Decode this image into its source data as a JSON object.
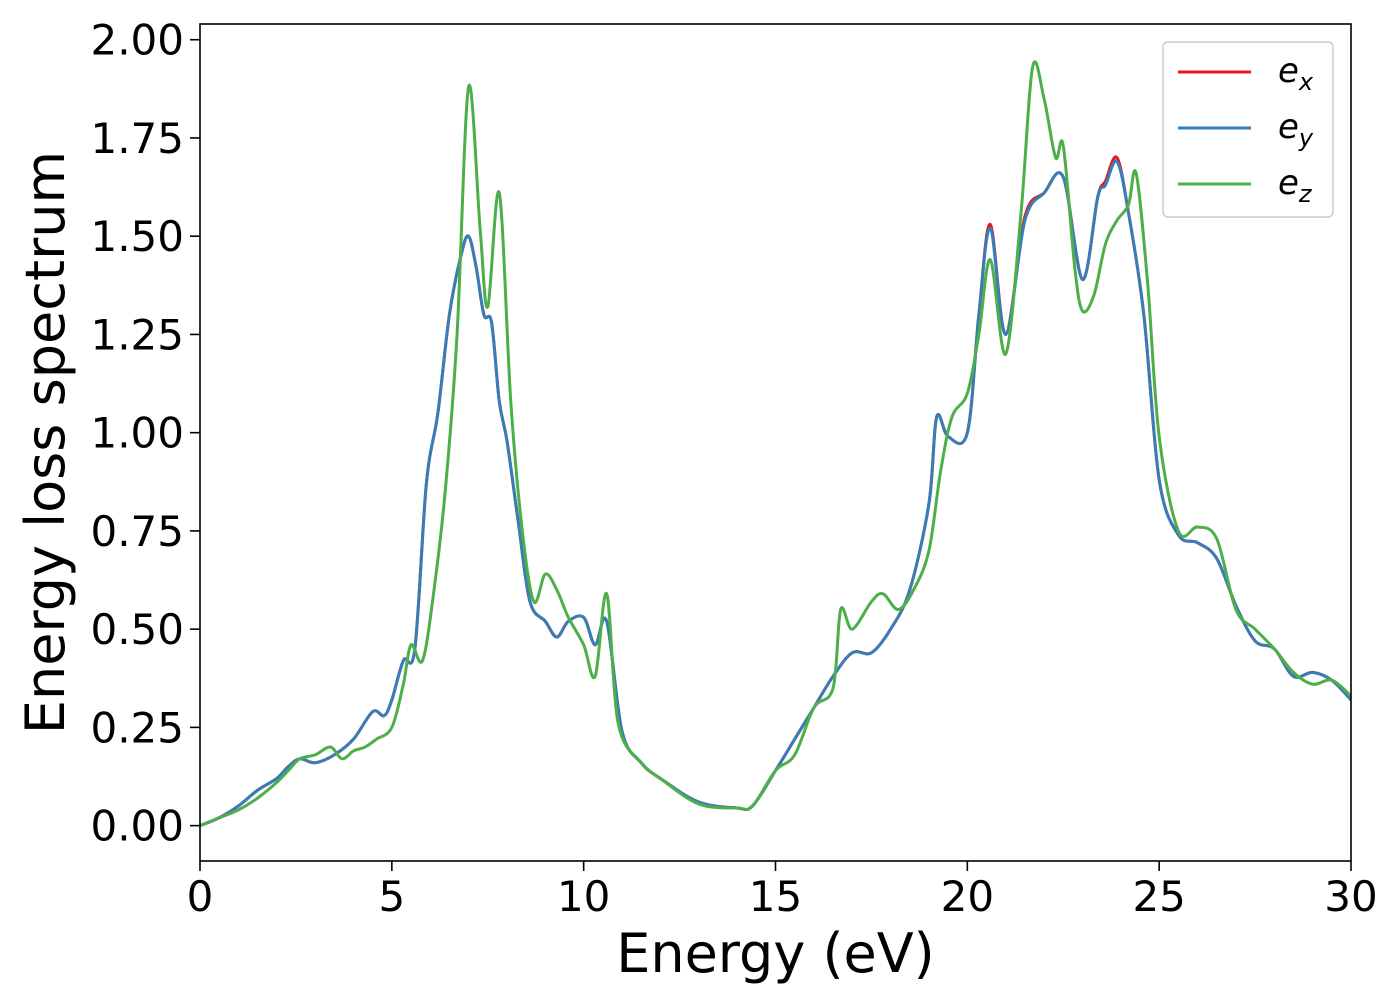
{
  "chart_data": {
    "type": "line",
    "title": "",
    "xlabel": "Energy (eV)",
    "ylabel": "Energy loss spectrum",
    "xlim": [
      0,
      30
    ],
    "ylim": [
      -0.09,
      2.04
    ],
    "xticks": [
      0,
      5,
      10,
      15,
      20,
      25,
      30
    ],
    "xtick_labels": [
      "0",
      "5",
      "10",
      "15",
      "20",
      "25",
      "30"
    ],
    "yticks": [
      0.0,
      0.25,
      0.5,
      0.75,
      1.0,
      1.25,
      1.5,
      1.75,
      2.0
    ],
    "ytick_labels": [
      "0.00",
      "0.25",
      "0.50",
      "0.75",
      "1.00",
      "1.25",
      "1.50",
      "1.75",
      "2.00"
    ],
    "grid": false,
    "legend_position": "top-right",
    "series": [
      {
        "name": "ex",
        "label_base": "e",
        "label_sub": "x",
        "color": "#e41a1c",
        "x": [
          0,
          0.5,
          1,
          1.5,
          2,
          2.3,
          2.6,
          3,
          3.5,
          4,
          4.5,
          4.8,
          5,
          5.3,
          5.6,
          5.9,
          6.2,
          6.5,
          6.8,
          7,
          7.2,
          7.4,
          7.6,
          7.8,
          8,
          8.3,
          8.6,
          9,
          9.3,
          9.6,
          10,
          10.3,
          10.6,
          11,
          11.5,
          12,
          13,
          14,
          14.4,
          15,
          15.5,
          16,
          16.5,
          17,
          17.5,
          18,
          18.5,
          19,
          19.2,
          19.5,
          20,
          20.3,
          20.6,
          21,
          21.5,
          22,
          22.5,
          23,
          23.4,
          23.6,
          23.9,
          24.2,
          24.6,
          25,
          25.5,
          26,
          26.5,
          27,
          27.5,
          28,
          28.5,
          29,
          29.5,
          30
        ],
        "y": [
          0,
          0.02,
          0.05,
          0.09,
          0.12,
          0.15,
          0.17,
          0.16,
          0.18,
          0.22,
          0.29,
          0.28,
          0.32,
          0.42,
          0.45,
          0.87,
          1.05,
          1.3,
          1.45,
          1.5,
          1.42,
          1.3,
          1.28,
          1.08,
          0.98,
          0.77,
          0.57,
          0.52,
          0.48,
          0.52,
          0.53,
          0.46,
          0.52,
          0.24,
          0.16,
          0.12,
          0.06,
          0.045,
          0.05,
          0.14,
          0.22,
          0.3,
          0.38,
          0.44,
          0.44,
          0.5,
          0.6,
          0.82,
          1.04,
          0.99,
          1.0,
          1.3,
          1.53,
          1.25,
          1.55,
          1.61,
          1.65,
          1.39,
          1.6,
          1.64,
          1.7,
          1.56,
          1.3,
          0.88,
          0.74,
          0.72,
          0.68,
          0.56,
          0.47,
          0.45,
          0.38,
          0.39,
          0.37,
          0.32
        ]
      },
      {
        "name": "ey",
        "label_base": "e",
        "label_sub": "y",
        "color": "#377eb8",
        "x": [
          0,
          0.5,
          1,
          1.5,
          2,
          2.3,
          2.6,
          3,
          3.5,
          4,
          4.5,
          4.8,
          5,
          5.3,
          5.6,
          5.9,
          6.2,
          6.5,
          6.8,
          7,
          7.2,
          7.4,
          7.6,
          7.8,
          8,
          8.3,
          8.6,
          9,
          9.3,
          9.6,
          10,
          10.3,
          10.6,
          11,
          11.5,
          12,
          13,
          14,
          14.4,
          15,
          15.5,
          16,
          16.5,
          17,
          17.5,
          18,
          18.5,
          19,
          19.2,
          19.5,
          20,
          20.3,
          20.6,
          21,
          21.5,
          22,
          22.5,
          23,
          23.4,
          23.6,
          23.9,
          24.2,
          24.6,
          25,
          25.5,
          26,
          26.5,
          27,
          27.5,
          28,
          28.5,
          29,
          29.5,
          30
        ],
        "y": [
          0,
          0.02,
          0.05,
          0.09,
          0.12,
          0.15,
          0.17,
          0.16,
          0.18,
          0.22,
          0.29,
          0.28,
          0.32,
          0.42,
          0.45,
          0.87,
          1.05,
          1.3,
          1.45,
          1.5,
          1.42,
          1.3,
          1.28,
          1.08,
          0.98,
          0.77,
          0.57,
          0.52,
          0.48,
          0.52,
          0.53,
          0.46,
          0.52,
          0.24,
          0.16,
          0.12,
          0.06,
          0.045,
          0.05,
          0.14,
          0.22,
          0.3,
          0.38,
          0.44,
          0.44,
          0.5,
          0.6,
          0.82,
          1.04,
          0.99,
          1.0,
          1.3,
          1.52,
          1.25,
          1.54,
          1.61,
          1.65,
          1.39,
          1.6,
          1.63,
          1.69,
          1.56,
          1.3,
          0.88,
          0.74,
          0.72,
          0.68,
          0.56,
          0.47,
          0.45,
          0.38,
          0.39,
          0.37,
          0.32
        ]
      },
      {
        "name": "ez",
        "label_base": "e",
        "label_sub": "z",
        "color": "#4daf4a",
        "x": [
          0,
          0.5,
          1,
          1.5,
          2,
          2.3,
          2.6,
          3,
          3.4,
          3.7,
          4,
          4.3,
          4.6,
          5,
          5.3,
          5.5,
          5.8,
          6.1,
          6.4,
          6.7,
          7,
          7.3,
          7.5,
          7.8,
          8.1,
          8.4,
          8.7,
          9,
          9.3,
          9.6,
          10,
          10.3,
          10.6,
          10.9,
          11.5,
          12,
          13,
          14,
          14.4,
          15,
          15.5,
          16,
          16.5,
          16.7,
          17,
          17.5,
          17.8,
          18.2,
          18.6,
          19,
          19.3,
          19.6,
          20,
          20.3,
          20.6,
          21,
          21.4,
          21.7,
          22,
          22.3,
          22.5,
          22.8,
          23,
          23.3,
          23.6,
          23.9,
          24.2,
          24.4,
          24.7,
          25,
          25.5,
          26,
          26.5,
          27,
          27.5,
          28,
          28.5,
          29,
          29.5,
          30
        ],
        "y": [
          0,
          0.02,
          0.04,
          0.07,
          0.11,
          0.14,
          0.17,
          0.18,
          0.2,
          0.17,
          0.19,
          0.2,
          0.22,
          0.25,
          0.36,
          0.46,
          0.42,
          0.6,
          0.86,
          1.25,
          1.88,
          1.52,
          1.32,
          1.61,
          1.08,
          0.75,
          0.57,
          0.64,
          0.6,
          0.53,
          0.46,
          0.38,
          0.59,
          0.26,
          0.16,
          0.12,
          0.055,
          0.045,
          0.05,
          0.14,
          0.18,
          0.3,
          0.35,
          0.55,
          0.5,
          0.57,
          0.59,
          0.55,
          0.6,
          0.7,
          0.9,
          1.04,
          1.1,
          1.25,
          1.44,
          1.2,
          1.56,
          1.93,
          1.85,
          1.7,
          1.73,
          1.42,
          1.31,
          1.35,
          1.48,
          1.54,
          1.58,
          1.66,
          1.38,
          0.99,
          0.75,
          0.76,
          0.73,
          0.55,
          0.5,
          0.45,
          0.39,
          0.36,
          0.37,
          0.33
        ]
      }
    ]
  }
}
